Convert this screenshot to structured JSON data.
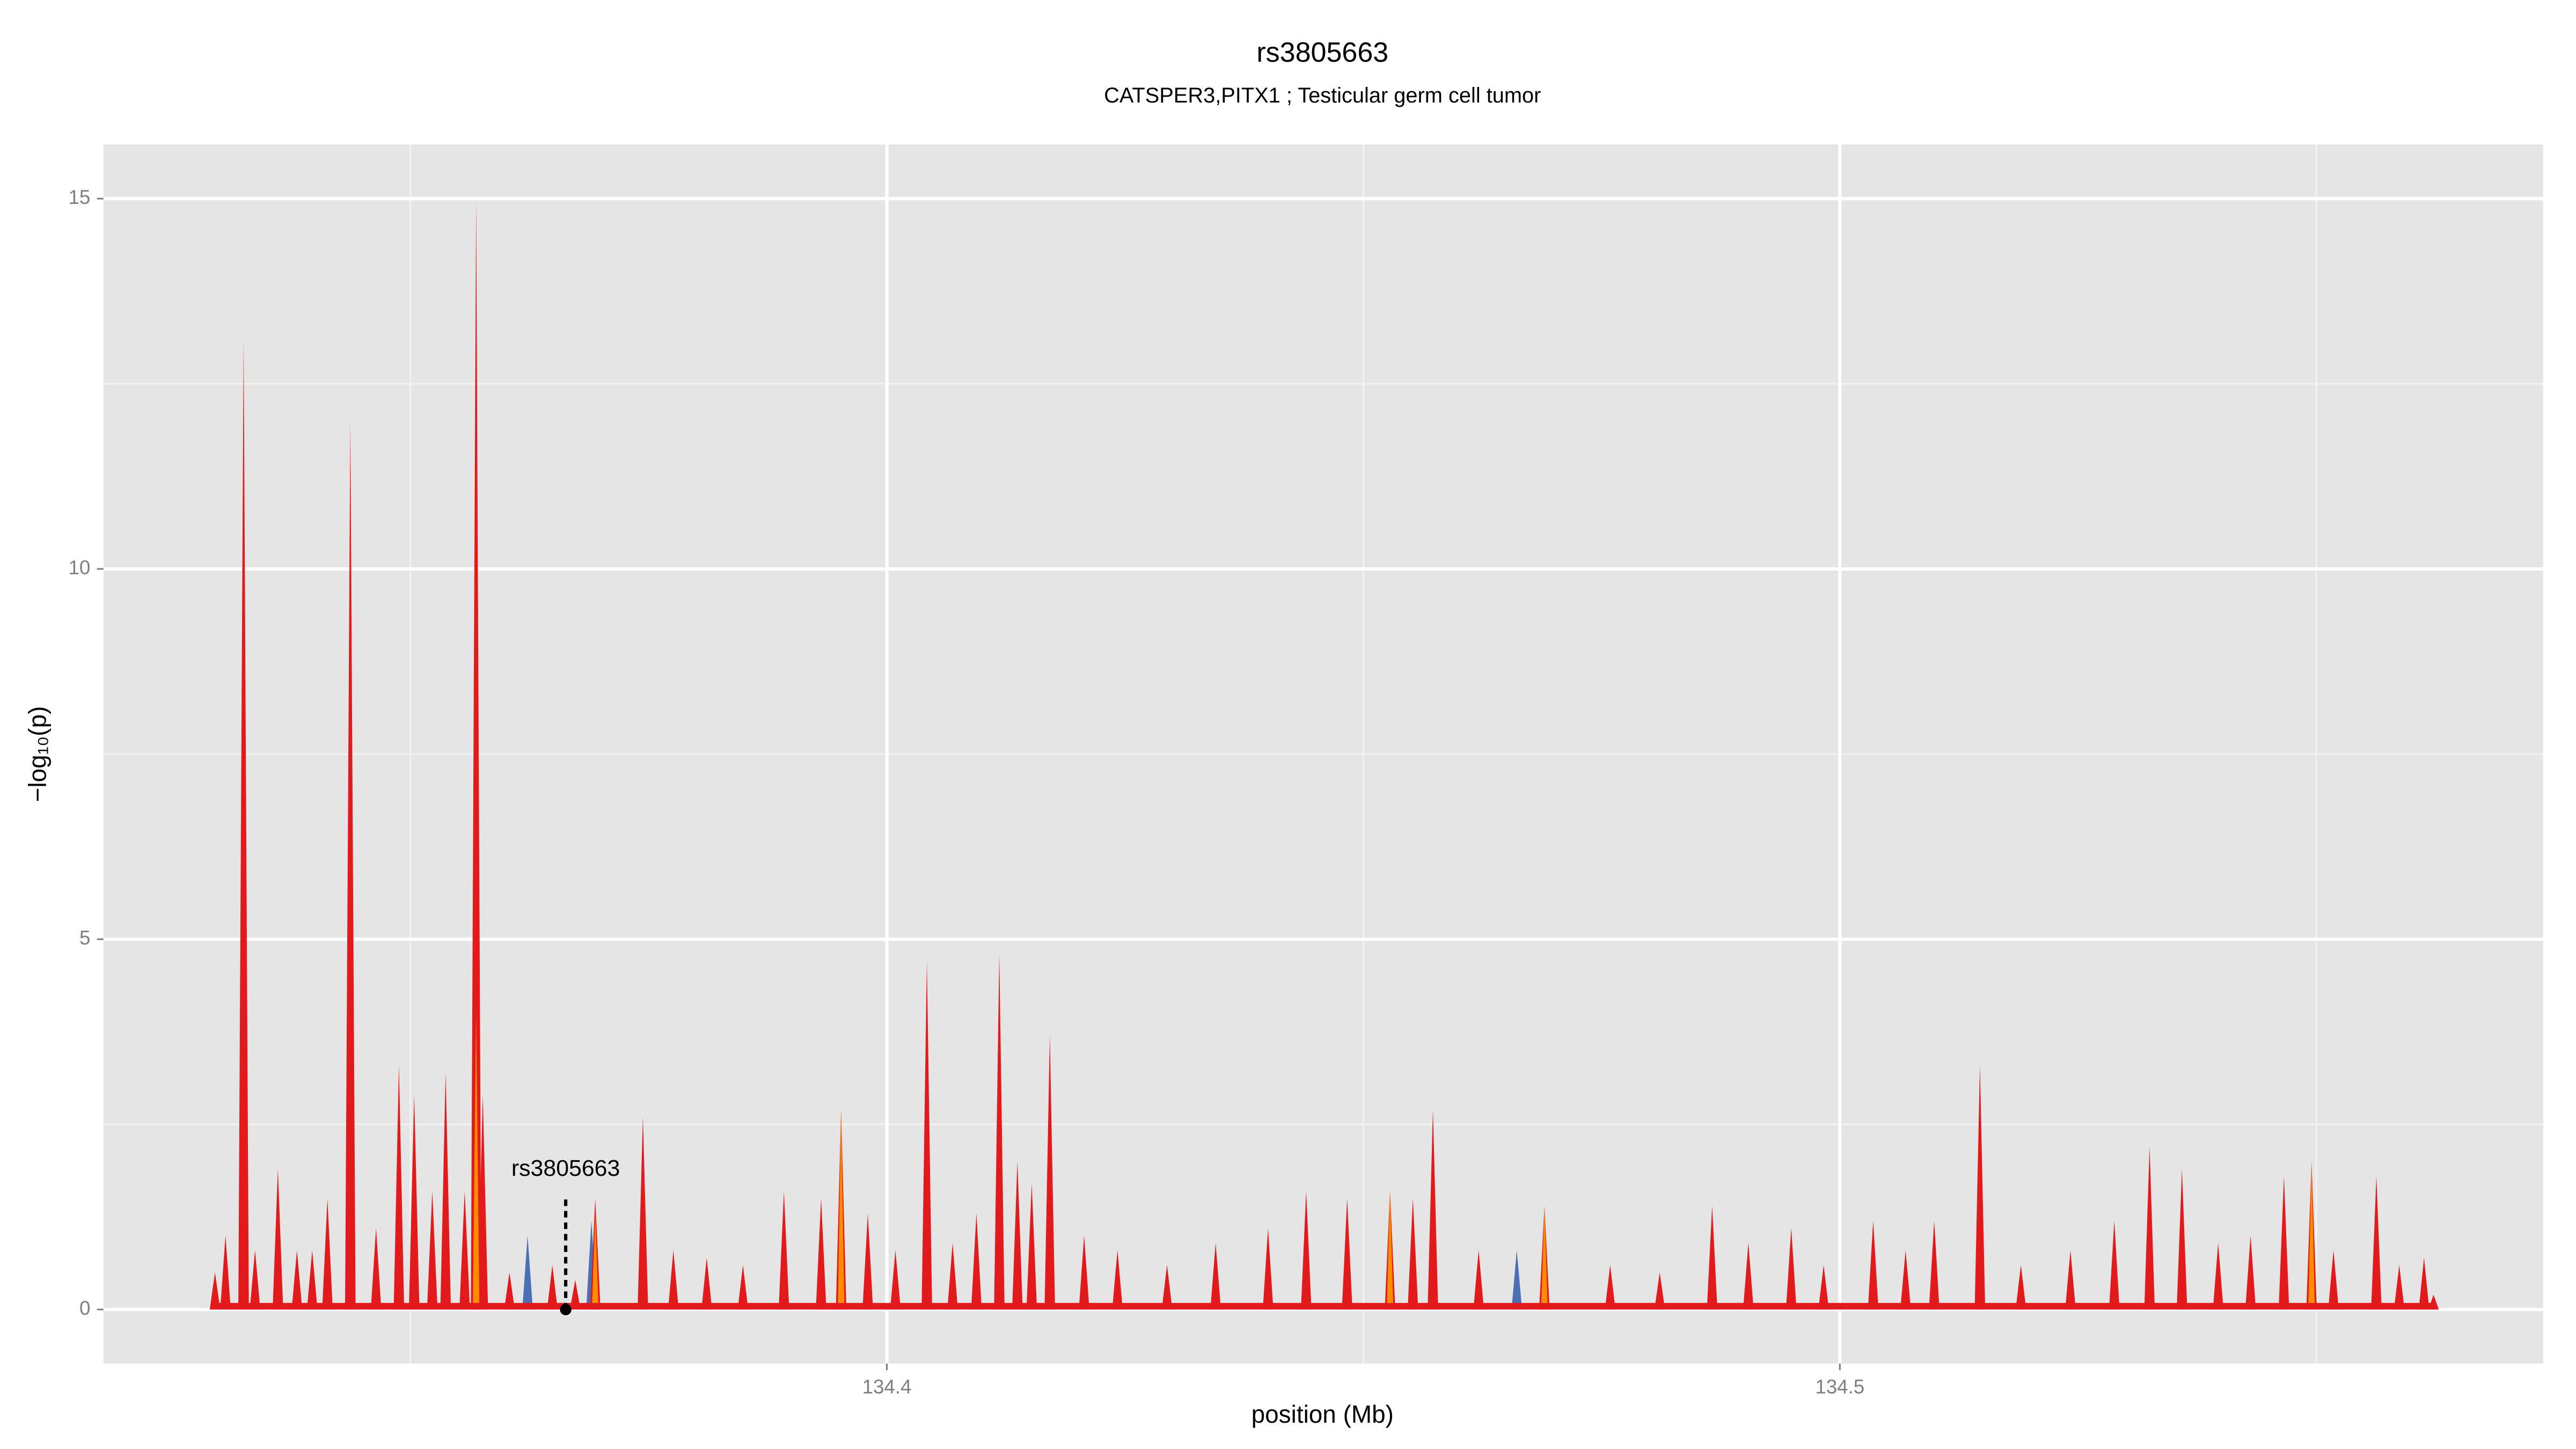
{
  "chart_data": {
    "type": "spike",
    "title": "rs3805663",
    "subtitle": "CATSPER3,PITX1 ; Testicular germ cell tumor",
    "x_label": "position (Mb)",
    "y_label": "−log₁₀(p)",
    "xlim": [
      134.3178,
      134.5738
    ],
    "ylim": [
      -0.73,
      15.73
    ],
    "xticks": [
      134.4,
      134.5
    ],
    "yticks": [
      0,
      5,
      10,
      15
    ],
    "x_minor_grid": [
      134.35,
      134.45,
      134.55
    ],
    "y_minor_grid": [
      2.5,
      7.5,
      12.5
    ],
    "grid": true,
    "series": [
      {
        "name": "blue",
        "color": "#4a6fb5",
        "x": [
          134.3623,
          134.369,
          134.4661
        ],
        "values": [
          1.0,
          1.2,
          0.8
        ]
      },
      {
        "name": "red",
        "color": "#e31a1c",
        "x": [
          134.3295,
          134.3306,
          134.3325,
          134.3337,
          134.3361,
          134.3381,
          134.3397,
          134.3413,
          134.3437,
          134.3464,
          134.3488,
          134.3504,
          134.3523,
          134.3537,
          134.3557,
          134.3569,
          134.3576,
          134.3604,
          134.3649,
          134.3673,
          134.3694,
          134.3744,
          134.3776,
          134.3811,
          134.3849,
          134.3892,
          134.3931,
          134.3952,
          134.398,
          134.4009,
          134.4042,
          134.4069,
          134.4094,
          134.4118,
          134.4137,
          134.4152,
          134.4171,
          134.4207,
          134.4242,
          134.4294,
          134.4345,
          134.44,
          134.444,
          134.4483,
          134.4528,
          134.4552,
          134.4573,
          134.4621,
          134.469,
          134.4759,
          134.4811,
          134.4866,
          134.4904,
          134.4949,
          134.4983,
          134.5035,
          134.5069,
          134.5099,
          134.5147,
          134.519,
          134.5242,
          134.5288,
          134.5325,
          134.5359,
          134.5397,
          134.5431,
          134.5466,
          134.5495,
          134.5518,
          134.5563,
          134.5587,
          134.5613,
          134.5623
        ],
        "values": [
          0.5,
          1.0,
          13.1,
          0.8,
          1.9,
          0.8,
          0.8,
          1.5,
          12.0,
          1.1,
          3.3,
          2.9,
          1.6,
          3.2,
          1.6,
          15.0,
          2.9,
          0.5,
          0.6,
          0.4,
          1.5,
          2.6,
          0.8,
          0.7,
          0.6,
          1.6,
          1.5,
          2.7,
          1.3,
          0.8,
          4.7,
          0.9,
          1.3,
          4.8,
          2.0,
          1.7,
          3.7,
          1.0,
          0.8,
          0.6,
          0.9,
          1.1,
          1.6,
          1.5,
          1.6,
          1.5,
          2.7,
          0.8,
          1.4,
          0.6,
          0.5,
          1.4,
          0.9,
          1.1,
          0.6,
          1.2,
          0.8,
          1.2,
          3.3,
          0.6,
          0.8,
          1.2,
          2.2,
          1.9,
          0.9,
          1.0,
          1.8,
          2.0,
          0.8,
          1.8,
          0.6,
          0.7,
          0.2
        ]
      },
      {
        "name": "orange",
        "color": "#ff8c00",
        "x": [
          134.3569,
          134.3694,
          134.3952,
          134.4528,
          134.469,
          134.5495
        ],
        "values": [
          4.0,
          1.3,
          2.7,
          1.6,
          1.4,
          2.0
        ]
      }
    ],
    "annotation": {
      "text": "rs3805663",
      "x": 134.3663,
      "y": 0
    }
  }
}
